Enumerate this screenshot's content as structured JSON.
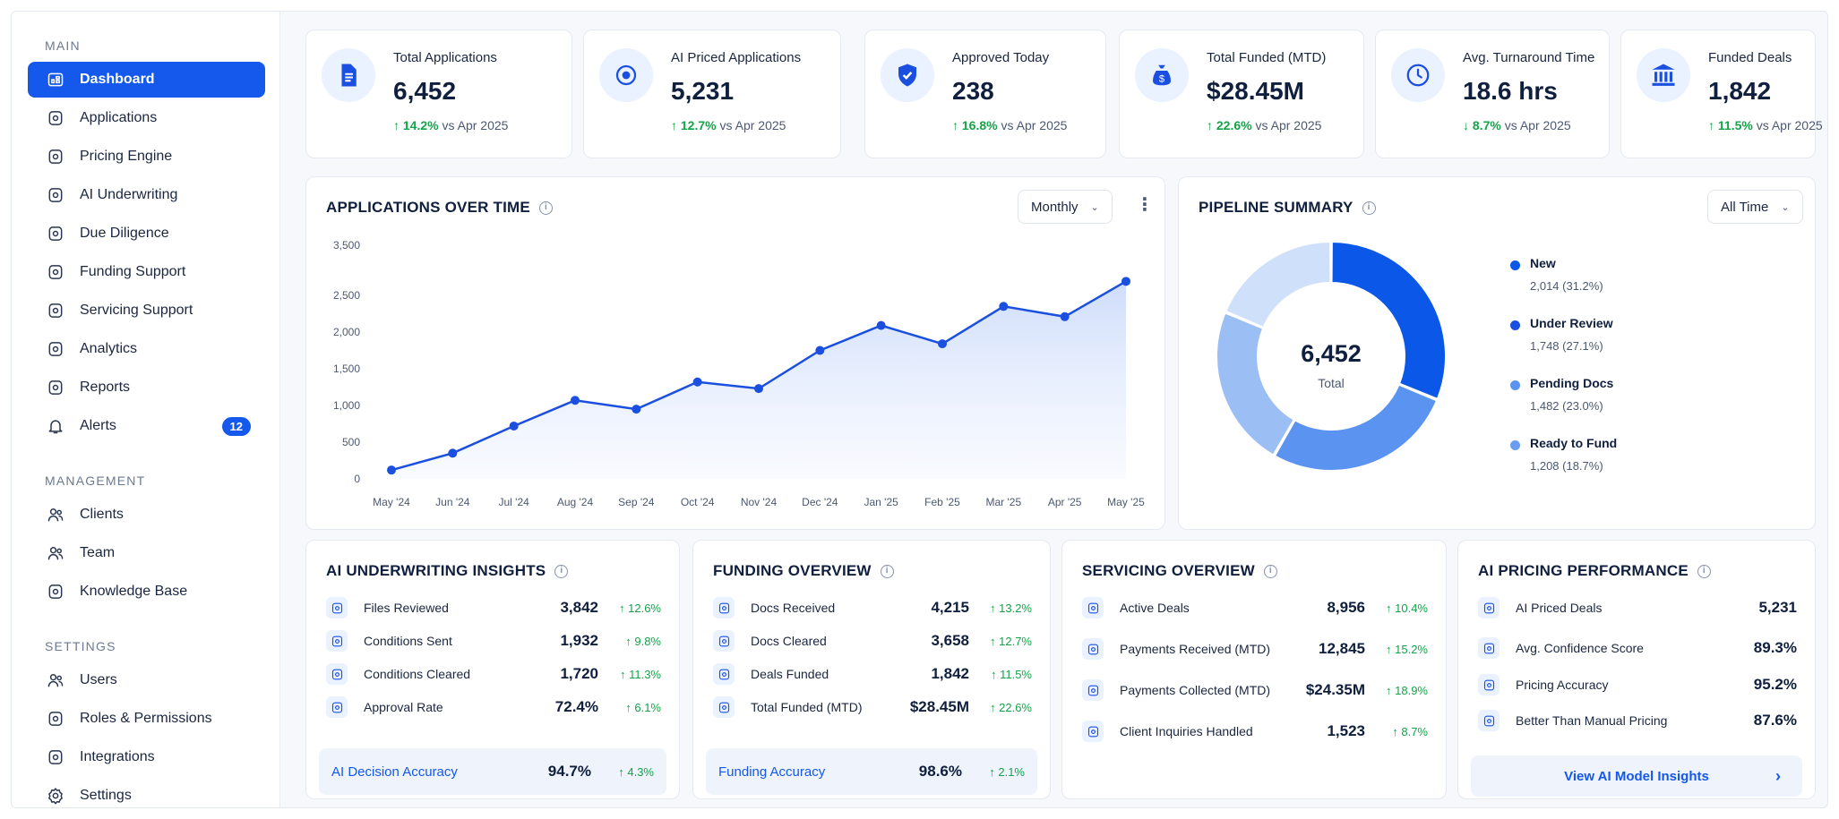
{
  "sidebar": {
    "sections": [
      {
        "title": "MAIN",
        "items": [
          {
            "label": "Dashboard",
            "icon": "dashboard-icon",
            "active": true
          },
          {
            "label": "Applications",
            "icon": "applications-icon"
          },
          {
            "label": "Pricing Engine",
            "icon": "pricing-engine-icon"
          },
          {
            "label": "AI Underwriting",
            "icon": "ai-underwriting-icon"
          },
          {
            "label": "Due Diligence",
            "icon": "due-diligence-icon"
          },
          {
            "label": "Funding Support",
            "icon": "funding-support-icon"
          },
          {
            "label": "Servicing Support",
            "icon": "servicing-support-icon"
          },
          {
            "label": "Analytics",
            "icon": "analytics-icon"
          },
          {
            "label": "Reports",
            "icon": "reports-icon"
          },
          {
            "label": "Alerts",
            "icon": "bell-icon",
            "badge": "12"
          }
        ]
      },
      {
        "title": "MANAGEMENT",
        "items": [
          {
            "label": "Clients",
            "icon": "clients-icon"
          },
          {
            "label": "Team",
            "icon": "team-icon"
          },
          {
            "label": "Knowledge Base",
            "icon": "knowledge-base-icon"
          }
        ]
      },
      {
        "title": "SETTINGS",
        "items": [
          {
            "label": "Users",
            "icon": "users-icon"
          },
          {
            "label": "Roles & Permissions",
            "icon": "roles-icon"
          },
          {
            "label": "Integrations",
            "icon": "integrations-icon"
          },
          {
            "label": "Settings",
            "icon": "gear-icon"
          }
        ]
      }
    ]
  },
  "kpis": [
    {
      "label": "Total Applications",
      "value": "6,452",
      "delta": "14.2%",
      "direction": "up",
      "compare": "vs Apr 2025",
      "icon": "document-icon"
    },
    {
      "label": "AI Priced Applications",
      "value": "5,231",
      "delta": "12.7%",
      "direction": "up",
      "compare": "vs Apr 2025",
      "icon": "ai-target-icon"
    },
    {
      "label": "Approved Today",
      "value": "238",
      "delta": "16.8%",
      "direction": "up",
      "compare": "vs Apr 2025",
      "icon": "shield-check-icon"
    },
    {
      "label": "Total Funded (MTD)",
      "value": "$28.45M",
      "delta": "22.6%",
      "direction": "up",
      "compare": "vs Apr 2025",
      "icon": "money-bag-icon"
    },
    {
      "label": "Avg. Turnaround Time",
      "value": "18.6 hrs",
      "delta": "8.7%",
      "direction": "down",
      "compare": "vs Apr 2025",
      "icon": "clock-icon"
    },
    {
      "label": "Funded Deals",
      "value": "1,842",
      "delta": "11.5%",
      "direction": "up",
      "compare": "vs Apr 2025",
      "icon": "bank-icon"
    }
  ],
  "applications_chart": {
    "title": "APPLICATIONS OVER TIME",
    "period": "Monthly"
  },
  "chart_data": {
    "type": "line",
    "categories": [
      "May '24",
      "Jun '24",
      "Jul '24",
      "Aug '24",
      "Sep '24",
      "Oct '24",
      "Nov '24",
      "Dec '24",
      "Jan '25",
      "Feb '25",
      "Mar '25",
      "Apr '25",
      "May '25"
    ],
    "values": [
      120,
      350,
      720,
      1070,
      950,
      1320,
      1230,
      1750,
      2090,
      1840,
      2350,
      2210,
      2780
    ],
    "yticks": [
      "0",
      "500",
      "1,000",
      "1,500",
      "2,000",
      "2,500",
      "3,500"
    ],
    "ylim": [
      0,
      3500
    ],
    "color": "#1a4fe0"
  },
  "pipeline": {
    "title": "PIPELINE SUMMARY",
    "period": "All Time",
    "center_value": "6,452",
    "center_label": "Total",
    "segments": [
      {
        "name": "New",
        "value": "2,014 (31.2%)",
        "pct": 31.2,
        "color": "#0b57e8"
      },
      {
        "name": "Under Review",
        "value": "1,748 (27.1%)",
        "pct": 27.1,
        "color": "#5a93f0"
      },
      {
        "name": "Pending Docs",
        "value": "1,482 (23.0%)",
        "pct": 23.0,
        "color": "#9bbef5"
      },
      {
        "name": "Ready to Fund",
        "value": "1,208 (18.7%)",
        "pct": 18.7,
        "color": "#cfe0fb"
      }
    ]
  },
  "panels": {
    "underwriting": {
      "title": "AI UNDERWRITING INSIGHTS",
      "rows": [
        {
          "label": "Files Reviewed",
          "value": "3,842",
          "delta": "12.6%",
          "icon": "file-review-icon"
        },
        {
          "label": "Conditions Sent",
          "value": "1,932",
          "delta": "9.8%",
          "icon": "send-icon"
        },
        {
          "label": "Conditions Cleared",
          "value": "1,720",
          "delta": "11.3%",
          "icon": "check-circle-icon"
        },
        {
          "label": "Approval Rate",
          "value": "72.4%",
          "delta": "6.1%",
          "icon": "target-icon"
        }
      ],
      "highlight": {
        "label": "AI Decision Accuracy",
        "value": "94.7%",
        "delta": "4.3%"
      }
    },
    "funding": {
      "title": "FUNDING OVERVIEW",
      "rows": [
        {
          "label": "Docs Received",
          "value": "4,215",
          "delta": "13.2%",
          "icon": "doc-received-icon"
        },
        {
          "label": "Docs Cleared",
          "value": "3,658",
          "delta": "12.7%",
          "icon": "doc-cleared-icon"
        },
        {
          "label": "Deals Funded",
          "value": "1,842",
          "delta": "11.5%",
          "icon": "deals-funded-icon"
        },
        {
          "label": "Total Funded (MTD)",
          "value": "$28.45M",
          "delta": "22.6%",
          "icon": "edit-icon"
        }
      ],
      "highlight": {
        "label": "Funding Accuracy",
        "value": "98.6%",
        "delta": "2.1%"
      }
    },
    "servicing": {
      "title": "SERVICING OVERVIEW",
      "rows": [
        {
          "label": "Active Deals",
          "value": "8,956",
          "delta": "10.4%",
          "icon": "active-deals-icon"
        },
        {
          "label": "Payments Received (MTD)",
          "value": "12,845",
          "delta": "15.2%",
          "icon": "payments-icon"
        },
        {
          "label": "Payments Collected (MTD)",
          "value": "$24.35M",
          "delta": "18.9%",
          "icon": "collected-icon"
        },
        {
          "label": "Client Inquiries Handled",
          "value": "1,523",
          "delta": "8.7%",
          "icon": "inquiries-icon"
        }
      ]
    },
    "pricing": {
      "title": "AI PRICING PERFORMANCE",
      "rows": [
        {
          "label": "AI Priced Deals",
          "value": "5,231",
          "icon": "priced-deals-icon"
        },
        {
          "label": "Avg. Confidence Score",
          "value": "89.3%",
          "icon": "confidence-icon"
        },
        {
          "label": "Pricing Accuracy",
          "value": "95.2%",
          "icon": "accuracy-icon"
        },
        {
          "label": "Better Than Manual Pricing",
          "value": "87.6%",
          "icon": "manual-pricing-icon"
        }
      ],
      "cta": "View AI Model Insights"
    }
  }
}
